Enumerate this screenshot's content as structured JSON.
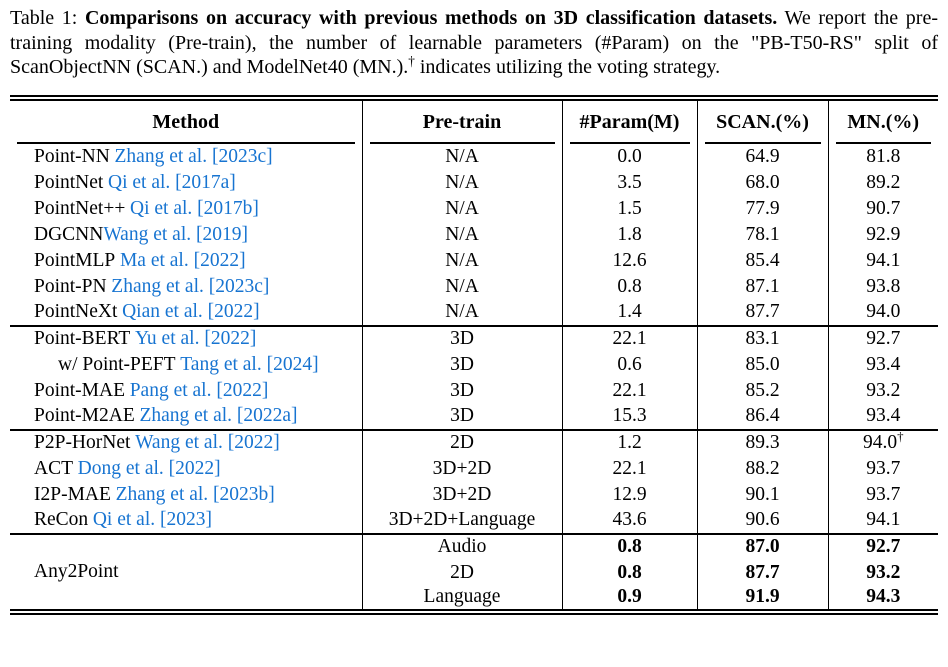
{
  "caption": {
    "prefix": "Table 1: ",
    "bold_title": "Comparisons on accuracy with previous methods on 3D classification datasets.",
    "body_before_dagger": " We report the pre-training modality (Pre-train), the number of learnable parameters (#Param) on the \"PB-T50-RS\" split of ScanObjectNN (SCAN.) and ModelNet40 (MN.).",
    "dagger": "†",
    "body_after_dagger": " indicates utilizing the voting strategy."
  },
  "table": {
    "headers": [
      "Method",
      "Pre-train",
      "#Param(M)",
      "SCAN.(%)",
      "MN.(%)"
    ],
    "groups": [
      {
        "rows": [
          {
            "method": "Point-NN",
            "citation": "Zhang et al. [2023c]",
            "pretrain": "N/A",
            "param": "0.0",
            "scan": "64.9",
            "mn": "81.8"
          },
          {
            "method": "PointNet",
            "citation": "Qi et al. [2017a]",
            "pretrain": "N/A",
            "param": "3.5",
            "scan": "68.0",
            "mn": "89.2"
          },
          {
            "method": "PointNet++",
            "citation": "Qi et al. [2017b]",
            "pretrain": "N/A",
            "param": "1.5",
            "scan": "77.9",
            "mn": "90.7"
          },
          {
            "method": "DGCNN",
            "citation": "Wang et al. [2019]",
            "no_space": true,
            "pretrain": "N/A",
            "param": "1.8",
            "scan": "78.1",
            "mn": "92.9"
          },
          {
            "method": "PointMLP",
            "citation": "Ma et al. [2022]",
            "pretrain": "N/A",
            "param": "12.6",
            "scan": "85.4",
            "mn": "94.1"
          },
          {
            "method": "Point-PN",
            "citation": "Zhang et al. [2023c]",
            "pretrain": "N/A",
            "param": "0.8",
            "scan": "87.1",
            "mn": "93.8"
          },
          {
            "method": "PointNeXt",
            "citation": "Qian et al. [2022]",
            "pretrain": "N/A",
            "param": "1.4",
            "scan": "87.7",
            "mn": "94.0"
          }
        ]
      },
      {
        "rows": [
          {
            "method": "Point-BERT",
            "citation": "Yu et al. [2022]",
            "pretrain": "3D",
            "param": "22.1",
            "scan": "83.1",
            "mn": "92.7"
          },
          {
            "method": "w/ Point-PEFT",
            "citation": "Tang et al. [2024]",
            "indent": true,
            "pretrain": "3D",
            "param": "0.6",
            "scan": "85.0",
            "mn": "93.4"
          },
          {
            "method": "Point-MAE",
            "citation": "Pang et al. [2022]",
            "pretrain": "3D",
            "param": "22.1",
            "scan": "85.2",
            "mn": "93.2"
          },
          {
            "method": "Point-M2AE",
            "citation": "Zhang et al. [2022a]",
            "pretrain": "3D",
            "param": "15.3",
            "scan": "86.4",
            "mn": "93.4"
          }
        ]
      },
      {
        "rows": [
          {
            "method": "P2P-HorNet",
            "citation": "Wang et al. [2022]",
            "pretrain": "2D",
            "param": "1.2",
            "scan": "89.3",
            "mn": "94.0",
            "mn_sup": "†"
          },
          {
            "method": "ACT",
            "citation": "Dong et al. [2022]",
            "pretrain": "3D+2D",
            "param": "22.1",
            "scan": "88.2",
            "mn": "93.7"
          },
          {
            "method": "I2P-MAE",
            "citation": "Zhang et al. [2023b]",
            "pretrain": "3D+2D",
            "param": "12.9",
            "scan": "90.1",
            "mn": "93.7"
          },
          {
            "method": "ReCon",
            "citation": "Qi et al. [2023]",
            "pretrain": "3D+2D+Language",
            "param": "43.6",
            "scan": "90.6",
            "mn": "94.1"
          }
        ]
      },
      {
        "method": "Any2Point",
        "bold_values": true,
        "rows": [
          {
            "pretrain": "Audio",
            "param": "0.8",
            "scan": "87.0",
            "mn": "92.7"
          },
          {
            "pretrain": "2D",
            "param": "0.8",
            "scan": "87.7",
            "mn": "93.2"
          },
          {
            "pretrain": "Language",
            "param": "0.9",
            "scan": "91.9",
            "mn": "94.3"
          }
        ]
      }
    ]
  },
  "colors": {
    "citation_link": "#1774d1",
    "text": "#000000",
    "rule": "#000000",
    "background": "#ffffff"
  }
}
